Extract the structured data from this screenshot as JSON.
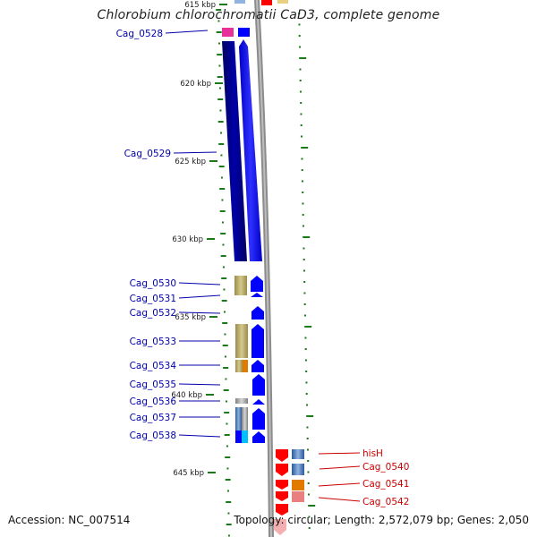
{
  "header": {
    "title": "Chlorobium chlorochromatii CaD3, complete genome"
  },
  "footer": {
    "accession": "Accession: NC_007514",
    "topology": "Topology: circular; Length: 2,572,079 bp; Genes: 2,050"
  },
  "ticks": [
    {
      "label": "615 kbp"
    },
    {
      "label": "620 kbp"
    },
    {
      "label": "625 kbp"
    },
    {
      "label": "630 kbp"
    },
    {
      "label": "635 kbp"
    },
    {
      "label": "640 kbp"
    },
    {
      "label": "645 kbp"
    }
  ],
  "genes_reverse": [
    {
      "name": "Cag_0528",
      "color": "#e8309a"
    },
    {
      "name": "Cag_0529",
      "color": "#00007a"
    },
    {
      "name": "Cag_0530",
      "color": "#b5a765"
    },
    {
      "name": "Cag_0531",
      "color": "#b5a765"
    },
    {
      "name": "Cag_0532",
      "color": "#b5a765"
    },
    {
      "name": "Cag_0533",
      "color": "#b5a765"
    },
    {
      "name": "Cag_0534",
      "color": "#e07b00"
    },
    {
      "name": "Cag_0535",
      "color": "#0000ff"
    },
    {
      "name": "Cag_0536",
      "color": "#a0a0a0"
    },
    {
      "name": "Cag_0537",
      "color": "#4a72b0"
    },
    {
      "name": "Cag_0538",
      "color": "#00bfff"
    }
  ],
  "genes_forward": [
    {
      "name": "hisH",
      "color": "#ff0000"
    },
    {
      "name": "Cag_0540",
      "color": "#4a72b0"
    },
    {
      "name": "Cag_0541",
      "color": "#e07b00"
    },
    {
      "name": "Cag_0542",
      "color": "#e05050"
    }
  ],
  "colors": {
    "backbone": "#8c8c8c",
    "cds": "#0000ff",
    "gc_skew": "#1a7a1a",
    "label_reverse": "#0000aa",
    "label_forward": "#cc0000"
  }
}
